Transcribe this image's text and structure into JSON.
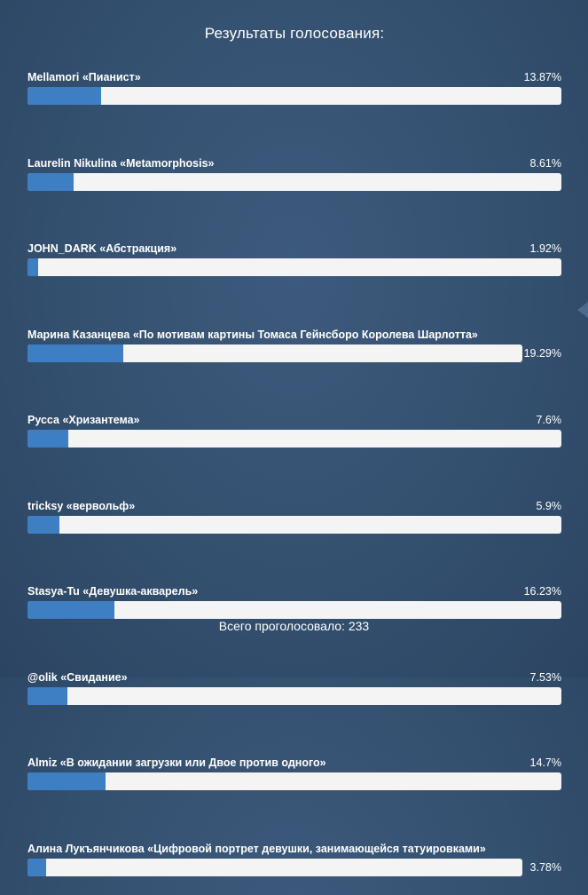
{
  "poll": {
    "title": "Результаты голосования:",
    "options": [
      {
        "label": "Mellamori «Пианист»",
        "percent_text": "13.87%",
        "percent": 13.87
      },
      {
        "label": "Laurelin Nikulina «Metamorphosis»",
        "percent_text": "8.61%",
        "percent": 8.61
      },
      {
        "label": "JOHN_DARK «Абстракция»",
        "percent_text": "1.92%",
        "percent": 1.92
      },
      {
        "label": "Марина Казанцева «По мотивам картины Томаса Гейнсборо Королева Шарлотта»",
        "percent_text": "19.29%",
        "percent": 19.29
      },
      {
        "label": "Русса «Хризантема»",
        "percent_text": "7.6%",
        "percent": 7.6
      },
      {
        "label": "tricksy «вервольф»",
        "percent_text": "5.9%",
        "percent": 5.9
      },
      {
        "label": "Stasya-Tu «Девушка-акварель»",
        "percent_text": "16.23%",
        "percent": 16.23
      },
      {
        "label": "@olik «Свидание»",
        "percent_text": "7.53%",
        "percent": 7.53
      },
      {
        "label": "Almiz «В ожидании загрузки или Двое против одного»",
        "percent_text": "14.7%",
        "percent": 14.7
      },
      {
        "label": "Алина Лукъянчикова «Цифровой портрет девушки, занимающейся татуировками»",
        "percent_text": "3.78%",
        "percent": 3.78
      }
    ],
    "total_text": "Всего проголосовало: 233"
  },
  "colors": {
    "bar_fill": "#3e7fc3",
    "bar_track": "#f4f4f4",
    "background": "#34506f",
    "text": "#ffffff"
  },
  "icons": {
    "side_arrow": "left-arrow-icon"
  }
}
